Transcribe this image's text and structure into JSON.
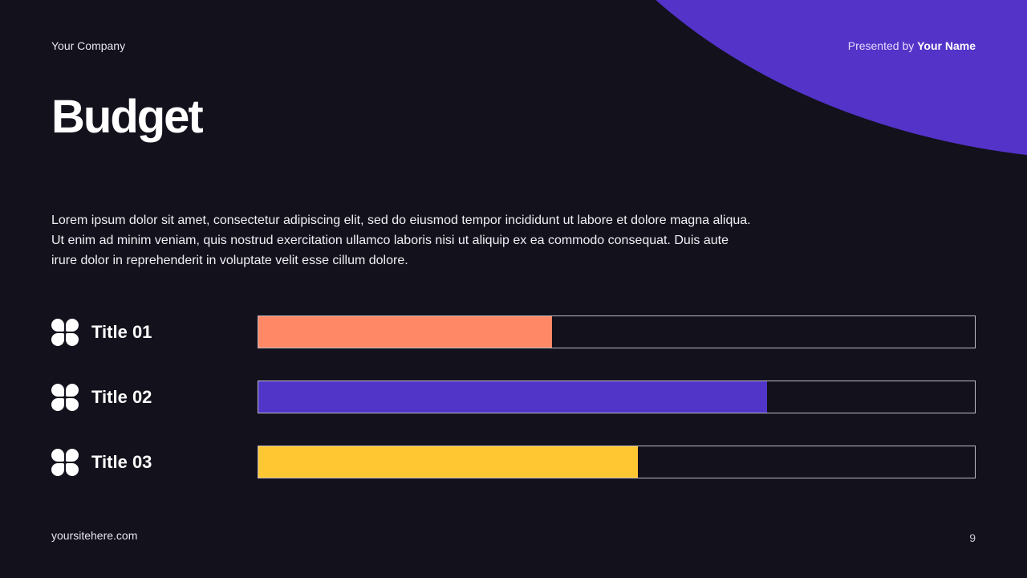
{
  "header": {
    "company": "Your Company",
    "presented_prefix": "Presented by",
    "presenter_name": "Your Name"
  },
  "slide": {
    "title": "Budget",
    "description": "Lorem ipsum dolor sit amet, consectetur adipiscing elit, sed do eiusmod tempor incididunt ut labore et dolore magna aliqua. Ut enim ad minim veniam, quis nostrud exercitation ullamco laboris nisi ut aliquip ex ea commodo consequat. Duis aute irure dolor in reprehenderit in voluptate velit esse cillum dolore."
  },
  "footer": {
    "site": "yoursitehere.com",
    "page_number": "9"
  },
  "colors": {
    "background": "#12111c",
    "accent_purple": "#5333c8",
    "orange": "#ff8866",
    "purple": "#5035c8",
    "yellow": "#ffc832"
  },
  "chart_data": {
    "type": "bar",
    "orientation": "horizontal",
    "title": "Budget",
    "categories": [
      "Title 01",
      "Title 02",
      "Title 03"
    ],
    "values": [
      41,
      71,
      53
    ],
    "max": 100,
    "unit": "%",
    "colors": [
      "#ff8866",
      "#5035c8",
      "#ffc832"
    ],
    "icon": "clover-icon",
    "grid": false,
    "legend": "none"
  }
}
